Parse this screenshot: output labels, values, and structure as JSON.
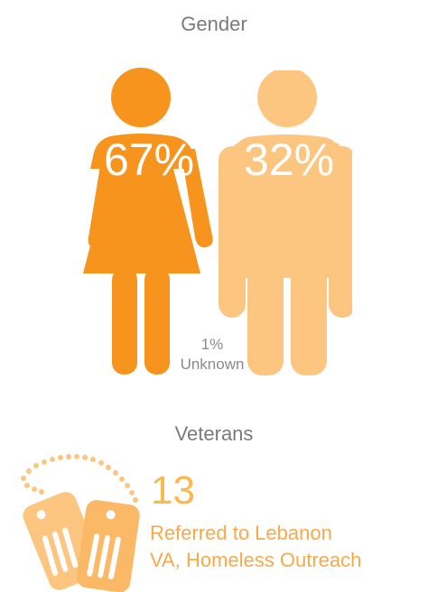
{
  "gender": {
    "title": "Gender",
    "female_percent": "67%",
    "male_percent": "32%",
    "unknown_percent": "1%",
    "unknown_label": "Unknown",
    "colors": {
      "female": "#f7941d",
      "male": "#fdc680"
    }
  },
  "veterans": {
    "title": "Veterans",
    "count": "13",
    "description_line1": "Referred to Lebanon",
    "description_line2": "VA, Homeless Outreach",
    "colors": {
      "icon": "#fdc680",
      "count": "#f9b94e"
    }
  }
}
